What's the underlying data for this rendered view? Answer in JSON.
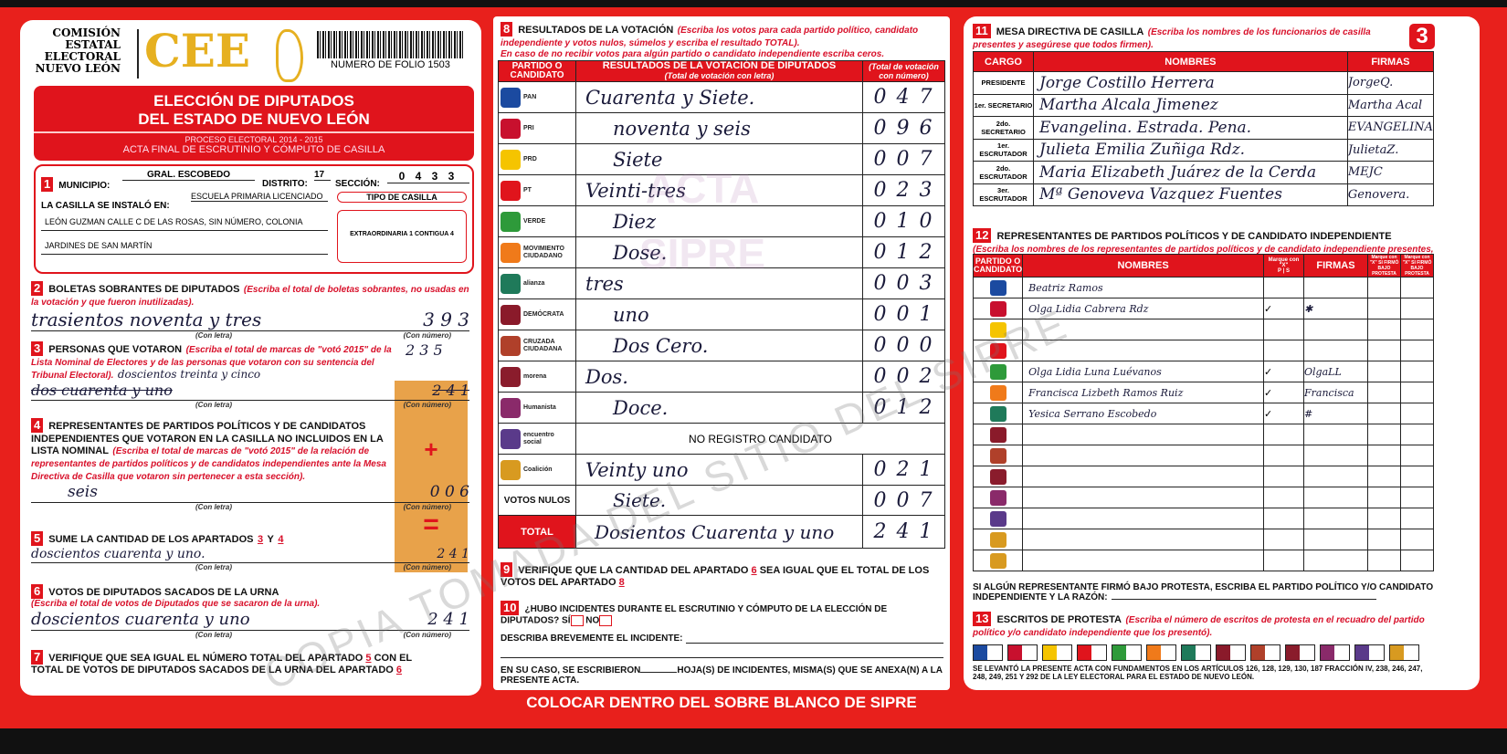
{
  "header": {
    "org": [
      "COMISIÓN",
      "ESTATAL",
      "ELECTORAL",
      "NUEVO LEÓN"
    ],
    "logo_text": "CEE",
    "folio": "NUMERO DE FOLIO 1503",
    "title1": "ELECCIÓN DE DIPUTADOS",
    "title2": "DEL ESTADO DE NUEVO LEÓN",
    "process": "PROCESO ELECTORAL  2014 - 2015",
    "acta": "ACTA FINAL DE ESCRUTINIO Y CÓMPUTO DE CASILLA"
  },
  "s1": {
    "n": "1",
    "municipio_label": "MUNICIPIO:",
    "municipio": "GRAL. ESCOBEDO",
    "distrito_label": "DISTRITO:",
    "distrito": "17",
    "seccion_label": "SECCIÓN:",
    "seccion": "0 4 3 3",
    "casilla_label": "LA CASILLA SE INSTALÓ EN:",
    "addr1": "ESCUELA PRIMARIA LICENCIADO",
    "addr2": "LEÓN GUZMAN CALLE C DE LAS ROSAS, SIN NÚMERO, COLONIA",
    "addr3": "JARDINES DE SAN MARTÍN",
    "tipo_label": "TIPO DE CASILLA",
    "tipo": "EXTRAORDINARIA 1 CONTIGUA 4"
  },
  "labels": {
    "con_letra": "(Con letra)",
    "con_numero": "(Con número)",
    "plus": "+",
    "equals": "="
  },
  "s2": {
    "n": "2",
    "title": "BOLETAS SOBRANTES DE DIPUTADOS",
    "note": "(Escriba el total de boletas sobrantes, no usadas en la votación y que fueron inutilizadas).",
    "letra": "trasientos noventa y tres",
    "numero": "3 9 3"
  },
  "s3": {
    "n": "3",
    "title": "PERSONAS QUE VOTARON",
    "note": "(Escriba el total de marcas de \"votó 2015\" de la Lista Nominal de Electores y de las personas que votaron con su sentencia del Tribunal Electoral).",
    "letra": "doscientos treinta y cinco",
    "letra_tachada": "dos cuarenta y uno",
    "numero": "2 3 5",
    "numero_tachado": "2 4 1"
  },
  "s4": {
    "n": "4",
    "title": "REPRESENTANTES DE PARTIDOS POLÍTICOS Y DE CANDIDATOS INDEPENDIENTES QUE VOTARON EN LA CASILLA NO INCLUIDOS EN LA LISTA NOMINAL",
    "note": "(Escriba el total de marcas de \"votó 2015\" de la relación de representantes de partidos políticos y de candidatos independientes ante la Mesa Directiva de Casilla que votaron sin pertenecer a esta sección).",
    "letra": "seis",
    "numero": "0 0 6"
  },
  "s5": {
    "n": "5",
    "title": "SUME LA CANTIDAD DE LOS APARTADOS",
    "a": "3",
    "y": "Y",
    "b": "4",
    "letra": "doscientos cuarenta y uno.",
    "numero": "2 4 1"
  },
  "s6": {
    "n": "6",
    "title": "VOTOS DE DIPUTADOS SACADOS DE LA URNA",
    "note": "(Escriba el total de votos de Diputados que se sacaron de la urna).",
    "letra": "doscientos cuarenta y uno",
    "numero": "2 4 1"
  },
  "s7": {
    "n": "7",
    "text1": "VERIFIQUE QUE SEA IGUAL EL NÚMERO TOTAL DEL APARTADO",
    "a": "5",
    "text2": "CON EL TOTAL DE VOTOS DE DIPUTADOS SACADOS DE LA URNA DEL APARTADO",
    "b": "6"
  },
  "s8": {
    "n": "8",
    "title": "RESULTADOS DE LA VOTACIÓN",
    "note": "(Escriba los votos para cada partido político, candidato independiente y votos nulos, súmelos y escriba el resultado TOTAL).",
    "note2": "En caso de no recibir votos para algún partido o candidato independiente escriba ceros.",
    "col1": "PARTIDO O CANDIDATO",
    "col2": "RESULTADOS DE LA VOTACIÓN DE DIPUTADOS",
    "col2sub": "(Total de votación con letra)",
    "col3": "(Total de votación con número)",
    "rows": [
      {
        "party": "PAN",
        "color": "#1b4aa0",
        "letra": "Cuarenta y Siete.",
        "numero": "0 4 7"
      },
      {
        "party": "PRI",
        "color": "#c8102e",
        "letra": "noventa y seis",
        "numero": "0 9 6"
      },
      {
        "party": "PRD",
        "color": "#f5c400",
        "letra": "Siete",
        "numero": "0 0 7"
      },
      {
        "party": "PT",
        "color": "#e0141c",
        "letra": "Veinti-tres",
        "numero": "0 2 3"
      },
      {
        "party": "VERDE",
        "color": "#2e9a3a",
        "letra": "Diez",
        "numero": "0 1 0"
      },
      {
        "party": "MOVIMIENTO CIUDADANO",
        "color": "#f07a1a",
        "letra": "Dose.",
        "numero": "0 1 2"
      },
      {
        "party": "alianza",
        "color": "#1f7a5a",
        "letra": "tres",
        "numero": "0 0 3"
      },
      {
        "party": "DEMÓCRATA",
        "color": "#8a1a2a",
        "letra": "uno",
        "numero": "0 0 1"
      },
      {
        "party": "CRUZADA CIUDADANA",
        "color": "#b0402a",
        "letra": "Dos  Cero.",
        "numero": "0 0 0"
      },
      {
        "party": "morena",
        "color": "#8a1c2c",
        "letra": "Dos.",
        "numero": "0 0 2"
      },
      {
        "party": "Humanista",
        "color": "#8a2a6a",
        "letra": "Doce.",
        "numero": "0 1 2"
      },
      {
        "party": "encuentro social",
        "color": "#5a3a8a",
        "letra": "NO REGISTRO CANDIDATO",
        "numero": ""
      },
      {
        "party": "Coalición",
        "color": "#d89a20",
        "letra": "Veinty uno",
        "numero": "0 2 1"
      }
    ],
    "nulos_label": "VOTOS NULOS",
    "nulos_letra": "Siete.",
    "nulos_numero": "0 0 7",
    "total_label": "TOTAL",
    "total_letra": "Dosientos Cuarenta y uno",
    "total_numero": "2 4 1"
  },
  "s9": {
    "n": "9",
    "text1": "VERIFIQUE QUE LA CANTIDAD DEL APARTADO",
    "a": "6",
    "text2": "SEA IGUAL QUE EL TOTAL DE LOS VOTOS DEL APARTADO",
    "b": "8"
  },
  "s10": {
    "n": "10",
    "question": "¿HUBO INCIDENTES DURANTE EL ESCRUTINIO Y CÓMPUTO DE LA ELECCIÓN DE DIPUTADOS?",
    "si": "SÍ",
    "no": "NO",
    "describe": "DESCRIBA BREVEMENTE EL INCIDENTE:",
    "hojas1": "EN SU CASO, SE ESCRIBIERON",
    "hojas2": "HOJA(S) DE INCIDENTES, MISMA(S) QUE SE ANEXA(N) A LA PRESENTE ACTA."
  },
  "banner": "COLOCAR DENTRO DEL SOBRE BLANCO DE SIPRE",
  "page_number": "3",
  "s11": {
    "n": "11",
    "title": "MESA DIRECTIVA DE CASILLA",
    "note": "(Escriba los nombres de los funcionarios de casilla presentes y asegúrese que todos firmen).",
    "cols": [
      "CARGO",
      "NOMBRES",
      "FIRMAS"
    ],
    "rows": [
      {
        "cargo": "PRESIDENTE",
        "nombre": "Jorge Costillo Herrera",
        "firma": "JorgeQ."
      },
      {
        "cargo": "1er. SECRETARIO",
        "nombre": "Martha Alcala Jimenez",
        "firma": "Martha Acal"
      },
      {
        "cargo": "2do. SECRETARIO",
        "nombre": "Evangelina. Estrada. Pena.",
        "firma": "EVANGELINA"
      },
      {
        "cargo": "1er. ESCRUTADOR",
        "nombre": "Julieta Emilia Zuñiga Rdz.",
        "firma": "JulietaZ."
      },
      {
        "cargo": "2do. ESCRUTADOR",
        "nombre": "Maria Elizabeth Juárez de la Cerda",
        "firma": "MEJC"
      },
      {
        "cargo": "3er. ESCRUTADOR",
        "nombre": "Mª Genoveva Vazquez Fuentes",
        "firma": "Genovera."
      }
    ]
  },
  "s12": {
    "n": "12",
    "title": "REPRESENTANTES DE PARTIDOS POLÍTICOS Y DE CANDIDATO INDEPENDIENTE",
    "note": "(Escriba los nombres de los representantes de partidos políticos y de candidato independiente presentes, marque con una \"X\" si es propietario (P) o suplente (S) y asegúrese que todos firmen).",
    "cols": {
      "partido": "PARTIDO O CANDIDATO",
      "nombres": "NOMBRES",
      "marque": "Marque con \"X\"",
      "p": "P",
      "s": "S",
      "firmas": "FIRMAS",
      "protesta1": "Marque con \"X\" SI FIRMÓ BAJO PROTESTA",
      "protesta2": "Marque con \"X\" SI FIRMÓ BAJO PROTESTA"
    },
    "rows": [
      {
        "nombre": "Beatriz Ramos",
        "p": "",
        "s": "",
        "firma": ""
      },
      {
        "nombre": "Olga Lidia Cabrera Rdz",
        "p": "✓",
        "s": "",
        "firma": "✱"
      },
      {
        "nombre": "",
        "p": "",
        "s": "",
        "firma": ""
      },
      {
        "nombre": "",
        "p": "",
        "s": "",
        "firma": ""
      },
      {
        "nombre": "Olga Lidia Luna Luévanos",
        "p": "✓",
        "s": "",
        "firma": "OlgaLL"
      },
      {
        "nombre": "Francisca Lizbeth Ramos Ruiz",
        "p": "✓",
        "s": "",
        "firma": "Francisca"
      },
      {
        "nombre": "Yesica Serrano Escobedo",
        "p": "✓",
        "s": "",
        "firma": "#"
      },
      {
        "nombre": "",
        "p": "",
        "s": "",
        "firma": ""
      },
      {
        "nombre": "",
        "p": "",
        "s": "",
        "firma": ""
      },
      {
        "nombre": "",
        "p": "",
        "s": "",
        "firma": ""
      },
      {
        "nombre": "",
        "p": "",
        "s": "",
        "firma": ""
      },
      {
        "nombre": "",
        "p": "",
        "s": "",
        "firma": ""
      },
      {
        "nombre": "",
        "p": "",
        "s": "",
        "firma": ""
      },
      {
        "nombre": "",
        "p": "",
        "s": "",
        "firma": ""
      }
    ],
    "protesta_text": "SI ALGÚN REPRESENTANTE FIRMÓ BAJO PROTESTA, ESCRIBA EL PARTIDO POLÍTICO Y/O CANDIDATO INDEPENDIENTE Y LA RAZÓN:"
  },
  "s13": {
    "n": "13",
    "title": "ESCRITOS DE PROTESTA",
    "note": "(Escriba el número de escritos de protesta en el recuadro del partido político y/o candidato independiente que los presentó).",
    "legal": "SE LEVANTÓ LA PRESENTE ACTA CON FUNDAMENTOS EN LOS ARTÍCULOS 126, 128, 129, 130, 187 FRACCIÓN IV, 238, 246, 247, 248, 249, 251 Y 292 DE LA LEY ELECTORAL PARA EL ESTADO DE NUEVO LEÓN."
  },
  "watermarks": {
    "diagonal": "COPIA TOMADA DEL SITIO DEL SIPRE",
    "center1": "ACTA",
    "center2": "SIPRE"
  }
}
